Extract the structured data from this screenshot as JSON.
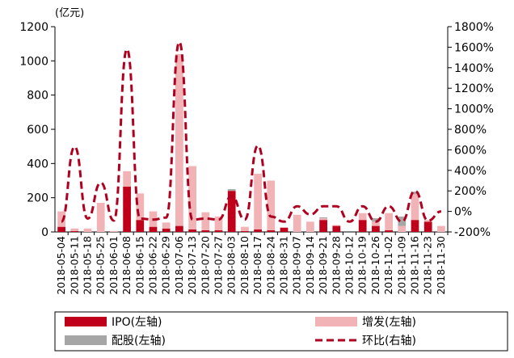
{
  "chart_data": {
    "type": "bar",
    "unit_left": "(亿元)",
    "categories": [
      "2018-05-04",
      "2018-05-11",
      "2018-05-18",
      "2018-05-25",
      "2018-06-01",
      "2018-06-08",
      "2018-06-15",
      "2018-06-22",
      "2018-06-29",
      "2018-07-06",
      "2018-07-13",
      "2018-07-20",
      "2018-07-27",
      "2018-08-03",
      "2018-08-10",
      "2018-08-17",
      "2018-08-24",
      "2018-08-31",
      "2018-09-07",
      "2018-09-14",
      "2018-09-21",
      "2018-09-28",
      "2018-10-12",
      "2018-10-19",
      "2018-10-26",
      "2018-11-02",
      "2018-11-09",
      "2018-11-16",
      "2018-11-23",
      "2018-11-30"
    ],
    "series": [
      {
        "name": "IPO(左轴)",
        "axis": "left",
        "kind": "stacked-bar",
        "color": "#c0001a",
        "values": [
          30,
          5,
          0,
          0,
          0,
          265,
          70,
          30,
          20,
          35,
          15,
          10,
          10,
          240,
          5,
          15,
          10,
          25,
          0,
          0,
          70,
          35,
          0,
          70,
          35,
          10,
          0,
          70,
          60,
          0
        ]
      },
      {
        "name": "增发(左轴)",
        "axis": "left",
        "kind": "stacked-bar",
        "color": "#f2b3b6",
        "values": [
          90,
          15,
          20,
          170,
          5,
          90,
          155,
          90,
          35,
          1005,
          370,
          105,
          80,
          0,
          25,
          325,
          290,
          0,
          100,
          60,
          10,
          5,
          0,
          40,
          25,
          100,
          35,
          150,
          10,
          35
        ]
      },
      {
        "name": "配股(左轴)",
        "axis": "left",
        "kind": "stacked-bar",
        "color": "#a6a6a6",
        "values": [
          0,
          0,
          0,
          0,
          0,
          0,
          0,
          0,
          0,
          0,
          0,
          0,
          0,
          10,
          0,
          0,
          0,
          0,
          0,
          0,
          5,
          0,
          0,
          0,
          20,
          0,
          55,
          15,
          0,
          0
        ]
      },
      {
        "name": "环比(右轴)",
        "axis": "right",
        "kind": "dashed-line",
        "color": "#b00020",
        "values": [
          -100,
          630,
          -70,
          280,
          -90,
          1580,
          -70,
          -80,
          -60,
          1650,
          -80,
          -70,
          -80,
          150,
          -80,
          640,
          -50,
          -100,
          50,
          -30,
          50,
          50,
          -100,
          50,
          -100,
          50,
          -100,
          200,
          -90,
          0
        ]
      }
    ],
    "y_left": {
      "min": 0,
      "max": 1200,
      "ticks": [
        0,
        200,
        400,
        600,
        800,
        1000,
        1200
      ]
    },
    "y_right": {
      "min": -200,
      "max": 1800,
      "ticks": [
        "-200%",
        "0%",
        "200%",
        "400%",
        "600%",
        "800%",
        "1000%",
        "1200%",
        "1400%",
        "1600%",
        "1800%"
      ]
    },
    "legend": {
      "placement": "bottom",
      "entries": [
        "IPO(左轴)",
        "增发(左轴)",
        "配股(左轴)",
        "环比(右轴)"
      ]
    },
    "grid": false
  }
}
